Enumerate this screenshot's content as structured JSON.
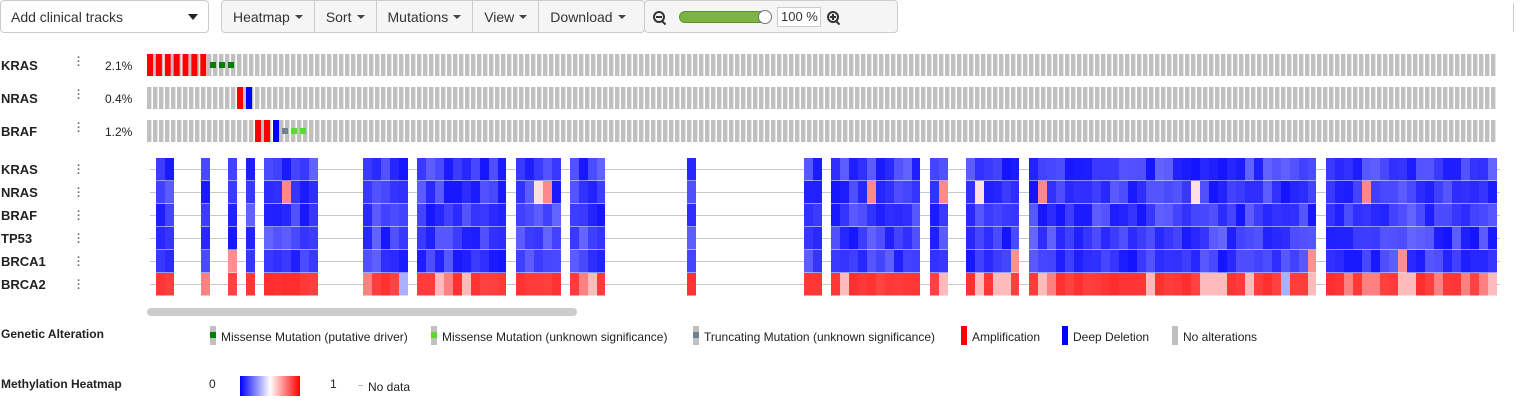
{
  "toolbar": {
    "clinical_tracks_label": "Add clinical tracks",
    "menus": [
      "Heatmap",
      "Sort",
      "Mutations",
      "View",
      "Download"
    ],
    "zoom_value": "100 %",
    "zoom_level": 0.95
  },
  "genetic_tracks": [
    {
      "gene": "KRAS",
      "percent": "2.1%"
    },
    {
      "gene": "NRAS",
      "percent": "0.4%"
    },
    {
      "gene": "BRAF",
      "percent": "1.2%"
    }
  ],
  "heatmap_tracks": [
    "KRAS",
    "NRAS",
    "BRAF",
    "TP53",
    "BRCA1",
    "BRCA2"
  ],
  "colors": {
    "no_alteration": "#c0c0c0",
    "amplification": "#ff0000",
    "deep_deletion": "#0000ff",
    "missense_driver": "#008000",
    "missense_unknown": "#5dd82e",
    "truncating": "#708090"
  },
  "legend": {
    "genetic_title": "Genetic Alteration",
    "items": [
      "Missense Mutation (putative driver)",
      "Missense Mutation (unknown significance)",
      "Truncating Mutation (unknown significance)",
      "Amplification",
      "Deep Deletion",
      "No alterations"
    ],
    "methylation_title": "Methylation Heatmap",
    "min": "0",
    "max": "1",
    "nodata": "No data"
  }
}
